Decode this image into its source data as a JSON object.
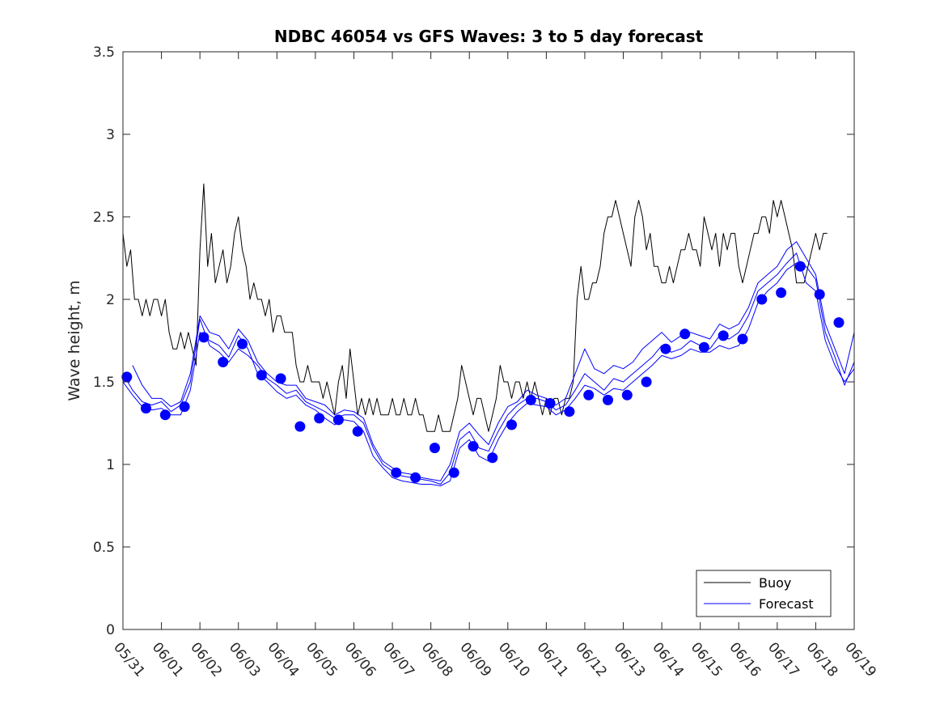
{
  "chart_data": {
    "type": "line",
    "title": "NDBC 46054 vs GFS Waves: 3 to 5 day forecast",
    "xlabel": "",
    "ylabel": "Wave height, m",
    "xlim": [
      0,
      19
    ],
    "ylim": [
      0,
      3.5
    ],
    "x_tick_labels": [
      "05/31",
      "06/01",
      "06/02",
      "06/03",
      "06/04",
      "06/05",
      "06/06",
      "06/07",
      "06/08",
      "06/09",
      "06/10",
      "06/11",
      "06/12",
      "06/13",
      "06/14",
      "06/15",
      "06/16",
      "06/17",
      "06/18",
      "06/19"
    ],
    "y_ticks": [
      0,
      0.5,
      1,
      1.5,
      2,
      2.5,
      3,
      3.5
    ],
    "y_tick_labels": [
      "0",
      "0.5",
      "1",
      "1.5",
      "2",
      "2.5",
      "3",
      "3.5"
    ],
    "grid": false,
    "legend_position": "bottom-right",
    "series": [
      {
        "name": "Buoy",
        "color": "#000000",
        "style": "line",
        "x": [
          0.0,
          0.1,
          0.2,
          0.3,
          0.4,
          0.5,
          0.6,
          0.7,
          0.8,
          0.9,
          1.0,
          1.1,
          1.2,
          1.3,
          1.4,
          1.5,
          1.6,
          1.7,
          1.8,
          1.9,
          2.0,
          2.1,
          2.2,
          2.3,
          2.4,
          2.5,
          2.6,
          2.7,
          2.8,
          2.9,
          3.0,
          3.1,
          3.2,
          3.3,
          3.4,
          3.5,
          3.6,
          3.7,
          3.8,
          3.9,
          4.0,
          4.1,
          4.2,
          4.3,
          4.4,
          4.5,
          4.6,
          4.7,
          4.8,
          4.9,
          5.0,
          5.1,
          5.2,
          5.3,
          5.4,
          5.5,
          5.6,
          5.7,
          5.8,
          5.9,
          6.0,
          6.1,
          6.2,
          6.3,
          6.4,
          6.5,
          6.6,
          6.7,
          6.8,
          6.9,
          7.0,
          7.1,
          7.2,
          7.3,
          7.4,
          7.5,
          7.6,
          7.7,
          7.8,
          7.9,
          8.0,
          8.1,
          8.2,
          8.3,
          8.4,
          8.5,
          8.6,
          8.7,
          8.8,
          8.9,
          9.0,
          9.1,
          9.2,
          9.3,
          9.4,
          9.5,
          9.6,
          9.7,
          9.8,
          9.9,
          10.0,
          10.1,
          10.2,
          10.3,
          10.4,
          10.5,
          10.6,
          10.7,
          10.8,
          10.9,
          11.0,
          11.1,
          11.2,
          11.3,
          11.4,
          11.5,
          11.6,
          11.7,
          11.8,
          11.9,
          12.0,
          12.1,
          12.2,
          12.3,
          12.4,
          12.5,
          12.6,
          12.7,
          12.8,
          12.9,
          13.0,
          13.1,
          13.2,
          13.3,
          13.4,
          13.5,
          13.6,
          13.7,
          13.8,
          13.9,
          14.0,
          14.1,
          14.2,
          14.3,
          14.4,
          14.5,
          14.6,
          14.7,
          14.8,
          14.9,
          15.0,
          15.1,
          15.2,
          15.3,
          15.4,
          15.5,
          15.6,
          15.7,
          15.8,
          15.9,
          16.0,
          16.1,
          16.2,
          16.3,
          16.4,
          16.5,
          16.6,
          16.7,
          16.8,
          16.9,
          17.0,
          17.1,
          17.2,
          17.3,
          17.4,
          17.5,
          17.6,
          17.7,
          17.8,
          17.9,
          18.0,
          18.1,
          18.2,
          18.3
        ],
        "values": [
          2.4,
          2.2,
          2.3,
          2.0,
          2.0,
          1.9,
          2.0,
          1.9,
          2.0,
          2.0,
          1.9,
          2.0,
          1.8,
          1.7,
          1.7,
          1.8,
          1.7,
          1.8,
          1.7,
          1.6,
          2.3,
          2.7,
          2.2,
          2.4,
          2.1,
          2.2,
          2.3,
          2.1,
          2.2,
          2.4,
          2.5,
          2.3,
          2.2,
          2.0,
          2.1,
          2.0,
          2.0,
          1.9,
          2.0,
          1.8,
          1.9,
          1.9,
          1.8,
          1.8,
          1.8,
          1.6,
          1.5,
          1.5,
          1.6,
          1.5,
          1.5,
          1.5,
          1.4,
          1.5,
          1.4,
          1.3,
          1.5,
          1.6,
          1.4,
          1.7,
          1.5,
          1.3,
          1.4,
          1.3,
          1.4,
          1.3,
          1.4,
          1.3,
          1.3,
          1.3,
          1.4,
          1.3,
          1.3,
          1.4,
          1.3,
          1.3,
          1.4,
          1.3,
          1.3,
          1.2,
          1.2,
          1.2,
          1.3,
          1.2,
          1.2,
          1.2,
          1.3,
          1.4,
          1.6,
          1.5,
          1.4,
          1.3,
          1.4,
          1.4,
          1.3,
          1.2,
          1.3,
          1.4,
          1.6,
          1.5,
          1.5,
          1.4,
          1.5,
          1.5,
          1.4,
          1.5,
          1.4,
          1.5,
          1.4,
          1.3,
          1.4,
          1.3,
          1.4,
          1.4,
          1.3,
          1.4,
          1.4,
          1.5,
          2.0,
          2.2,
          2.0,
          2.0,
          2.1,
          2.1,
          2.2,
          2.4,
          2.5,
          2.5,
          2.6,
          2.5,
          2.4,
          2.3,
          2.2,
          2.5,
          2.6,
          2.5,
          2.3,
          2.4,
          2.2,
          2.2,
          2.1,
          2.1,
          2.2,
          2.1,
          2.2,
          2.3,
          2.3,
          2.4,
          2.3,
          2.3,
          2.2,
          2.5,
          2.4,
          2.3,
          2.4,
          2.2,
          2.4,
          2.3,
          2.4,
          2.4,
          2.2,
          2.1,
          2.2,
          2.3,
          2.4,
          2.4,
          2.5,
          2.5,
          2.4,
          2.6,
          2.5,
          2.6,
          2.5,
          2.4,
          2.3,
          2.1,
          2.1,
          2.1,
          2.2,
          2.3,
          2.4,
          2.3,
          2.4,
          2.4
        ]
      },
      {
        "name": "Forecast",
        "color": "#0000ff",
        "style": "line",
        "x": [
          0.0,
          0.25,
          0.5,
          0.75,
          1.0,
          1.25,
          1.5,
          1.75,
          2.0,
          2.25,
          2.5,
          2.75,
          3.0,
          3.25,
          3.5,
          3.75,
          4.0,
          4.25,
          4.5,
          4.75,
          5.0,
          5.25,
          5.5,
          5.75,
          6.0,
          6.25,
          6.5,
          6.75,
          7.0,
          7.25,
          7.5,
          7.75,
          8.0,
          8.25,
          8.5,
          8.75,
          9.0,
          9.25,
          9.5,
          9.75,
          10.0,
          10.25,
          10.5,
          10.75,
          11.0,
          11.25,
          11.5,
          11.75,
          12.0,
          12.25,
          12.5,
          12.75,
          13.0,
          13.25,
          13.5,
          13.75,
          14.0,
          14.25,
          14.5,
          14.75,
          15.0,
          15.25,
          15.5,
          15.75,
          16.0,
          16.25,
          16.5,
          16.75,
          17.0,
          17.25,
          17.5,
          17.75,
          18.0,
          18.25,
          18.5,
          18.75,
          19.0
        ],
        "values": [
          1.55,
          1.45,
          1.38,
          1.36,
          1.38,
          1.32,
          1.36,
          1.5,
          1.88,
          1.72,
          1.68,
          1.62,
          1.7,
          1.66,
          1.6,
          1.52,
          1.48,
          1.43,
          1.45,
          1.38,
          1.35,
          1.32,
          1.28,
          1.3,
          1.3,
          1.25,
          1.1,
          1.0,
          0.96,
          0.93,
          0.92,
          0.91,
          0.9,
          0.88,
          0.95,
          1.15,
          1.2,
          1.1,
          1.08,
          1.2,
          1.3,
          1.36,
          1.4,
          1.4,
          1.38,
          1.33,
          1.36,
          1.45,
          1.55,
          1.5,
          1.45,
          1.52,
          1.5,
          1.55,
          1.6,
          1.65,
          1.72,
          1.68,
          1.7,
          1.75,
          1.72,
          1.7,
          1.78,
          1.76,
          1.8,
          1.9,
          2.05,
          2.1,
          2.15,
          2.22,
          2.28,
          2.1,
          2.05,
          1.75,
          1.6,
          1.5,
          1.58
        ]
      },
      {
        "name": "Forecast",
        "color": "#0000ff",
        "style": "line",
        "x": [
          0.0,
          0.25,
          0.5,
          0.75,
          1.0,
          1.25,
          1.5,
          1.75,
          2.0,
          2.25,
          2.5,
          2.75,
          3.0,
          3.25,
          3.5,
          3.75,
          4.0,
          4.25,
          4.5,
          4.75,
          5.0,
          5.25,
          5.5,
          5.75,
          6.0,
          6.25,
          6.5,
          6.75,
          7.0,
          7.25,
          7.5,
          7.75,
          8.0,
          8.25,
          8.5,
          8.75,
          9.0,
          9.25,
          9.5,
          9.75,
          10.0,
          10.25,
          10.5,
          10.75,
          11.0,
          11.25,
          11.5,
          11.75,
          12.0,
          12.25,
          12.5,
          12.75,
          13.0,
          13.25,
          13.5,
          13.75,
          14.0,
          14.25,
          14.5,
          14.75,
          15.0,
          15.25,
          15.5,
          15.75,
          16.0,
          16.25,
          16.5,
          16.75,
          17.0,
          17.25,
          17.5,
          17.75,
          18.0,
          18.25,
          18.5,
          18.75,
          19.0
        ],
        "values": [
          1.5,
          1.42,
          1.35,
          1.33,
          1.34,
          1.3,
          1.3,
          1.45,
          1.8,
          1.75,
          1.72,
          1.65,
          1.78,
          1.7,
          1.55,
          1.5,
          1.44,
          1.4,
          1.42,
          1.36,
          1.33,
          1.28,
          1.24,
          1.27,
          1.26,
          1.2,
          1.05,
          0.98,
          0.92,
          0.9,
          0.89,
          0.88,
          0.88,
          0.87,
          0.9,
          1.1,
          1.15,
          1.05,
          1.02,
          1.15,
          1.25,
          1.32,
          1.37,
          1.36,
          1.35,
          1.3,
          1.33,
          1.4,
          1.48,
          1.46,
          1.42,
          1.46,
          1.45,
          1.5,
          1.55,
          1.6,
          1.66,
          1.64,
          1.66,
          1.7,
          1.68,
          1.68,
          1.72,
          1.7,
          1.72,
          1.82,
          1.98,
          2.05,
          2.1,
          2.18,
          2.22,
          2.2,
          2.12,
          1.8,
          1.65,
          1.48,
          1.62
        ]
      },
      {
        "name": "Forecast",
        "color": "#0000ff",
        "style": "line",
        "x": [
          0.25,
          0.5,
          0.75,
          1.0,
          1.25,
          1.5,
          1.75,
          2.0,
          2.25,
          2.5,
          2.75,
          3.0,
          3.25,
          3.5,
          3.75,
          4.0,
          4.25,
          4.5,
          4.75,
          5.0,
          5.25,
          5.5,
          5.75,
          6.0,
          6.25,
          6.5,
          6.75,
          7.0,
          7.25,
          7.5,
          7.75,
          8.0,
          8.25,
          8.5,
          8.75,
          9.0,
          9.25,
          9.5,
          9.75,
          10.0,
          10.25,
          10.5,
          10.75,
          11.0,
          11.25,
          11.5,
          11.75,
          12.0,
          12.25,
          12.5,
          12.75,
          13.0,
          13.25,
          13.5,
          13.75,
          14.0,
          14.25,
          14.5,
          14.75,
          15.0,
          15.25,
          15.5,
          15.75,
          16.0,
          16.25,
          16.5,
          16.75,
          17.0,
          17.25,
          17.5,
          17.75,
          18.0,
          18.25,
          18.5,
          18.75,
          19.0
        ],
        "values": [
          1.6,
          1.48,
          1.4,
          1.4,
          1.35,
          1.38,
          1.55,
          1.9,
          1.8,
          1.78,
          1.7,
          1.82,
          1.75,
          1.62,
          1.55,
          1.5,
          1.48,
          1.48,
          1.4,
          1.38,
          1.36,
          1.3,
          1.33,
          1.32,
          1.28,
          1.12,
          1.02,
          0.98,
          0.95,
          0.94,
          0.92,
          0.91,
          0.9,
          1.0,
          1.2,
          1.25,
          1.18,
          1.12,
          1.25,
          1.35,
          1.38,
          1.45,
          1.42,
          1.4,
          1.36,
          1.4,
          1.55,
          1.7,
          1.58,
          1.55,
          1.6,
          1.58,
          1.62,
          1.7,
          1.75,
          1.8,
          1.74,
          1.78,
          1.8,
          1.78,
          1.76,
          1.85,
          1.82,
          1.85,
          1.95,
          2.1,
          2.15,
          2.2,
          2.3,
          2.35,
          2.25,
          2.15,
          1.85,
          1.7,
          1.55,
          1.8
        ]
      },
      {
        "name": "Forecast",
        "color": "#0000ff",
        "style": "markers",
        "x": [
          0.1,
          0.6,
          1.1,
          1.6,
          2.1,
          2.6,
          3.1,
          3.6,
          4.1,
          4.6,
          5.1,
          5.6,
          6.1,
          7.1,
          7.6,
          8.1,
          8.6,
          9.1,
          9.6,
          10.1,
          10.6,
          11.1,
          11.6,
          12.1,
          12.6,
          13.1,
          13.6,
          14.1,
          14.6,
          15.1,
          15.6,
          16.1,
          16.6,
          17.1,
          17.6,
          18.1,
          18.6
        ],
        "values": [
          1.53,
          1.34,
          1.3,
          1.35,
          1.77,
          1.62,
          1.73,
          1.54,
          1.52,
          1.23,
          1.28,
          1.27,
          1.2,
          0.95,
          0.92,
          1.1,
          0.95,
          1.11,
          1.04,
          1.24,
          1.39,
          1.37,
          1.32,
          1.42,
          1.39,
          1.42,
          1.5,
          1.7,
          1.79,
          1.71,
          1.78,
          1.76,
          2.0,
          2.04,
          2.2,
          2.03,
          1.86
        ]
      }
    ],
    "legend": [
      {
        "label": "Buoy",
        "color": "#000000"
      },
      {
        "label": "Forecast",
        "color": "#0000ff"
      }
    ]
  }
}
